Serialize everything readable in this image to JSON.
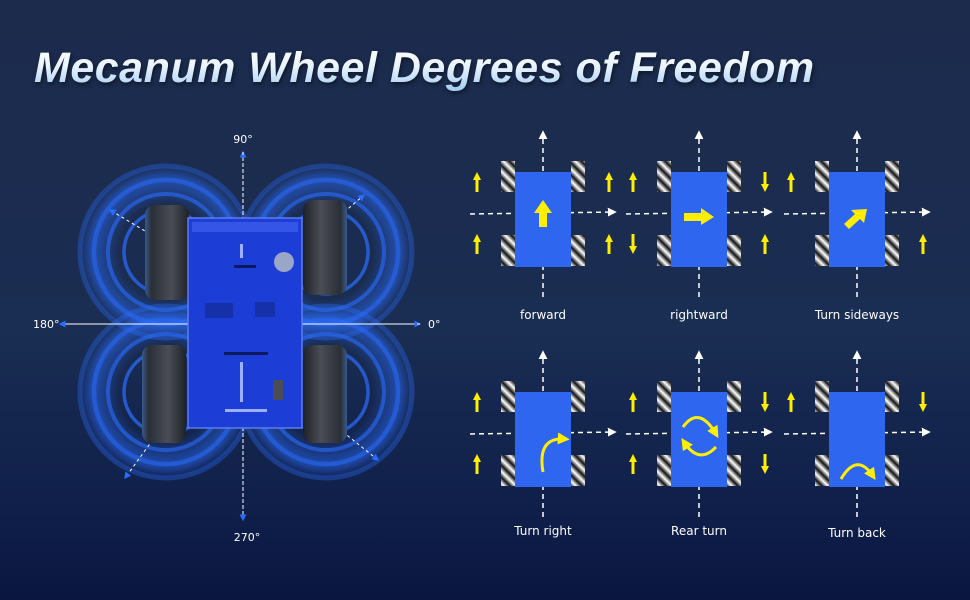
{
  "title": "Mecanum Wheel Degrees of Freedom",
  "robot": {
    "angles": {
      "up": "90°",
      "left": "180°",
      "right": "0°",
      "down": "270°"
    },
    "body_color": "#1e3fd8",
    "ring_color": "#2a6cff"
  },
  "colors": {
    "chassis": "#2f66f0",
    "arrow": "#ffee00",
    "dash": "#ffffff"
  },
  "modes": [
    {
      "label": "forward",
      "wheels": {
        "lf": "up",
        "rf": "up",
        "lr": "up",
        "rr": "up"
      },
      "center_icon": "arrow-up-icon"
    },
    {
      "label": "rightward",
      "wheels": {
        "lf": "up",
        "rf": "down",
        "lr": "down",
        "rr": "up"
      },
      "center_icon": "arrow-right-icon"
    },
    {
      "label": "Turn sideways",
      "wheels": {
        "lf": "up",
        "rf": "none",
        "lr": "none",
        "rr": "up"
      },
      "center_icon": "arrow-diagonal-icon"
    },
    {
      "label": "Turn right",
      "wheels": {
        "lf": "up",
        "rf": "none",
        "lr": "up",
        "rr": "none"
      },
      "center_icon": "curved-arrow-right-icon"
    },
    {
      "label": "Rear turn",
      "wheels": {
        "lf": "up",
        "rf": "down",
        "lr": "up",
        "rr": "down"
      },
      "center_icon": "rotate-icon"
    },
    {
      "label": "Turn back",
      "wheels": {
        "lf": "up",
        "rf": "down",
        "lr": "none",
        "rr": "none"
      },
      "center_icon": "arch-arrow-icon"
    }
  ]
}
